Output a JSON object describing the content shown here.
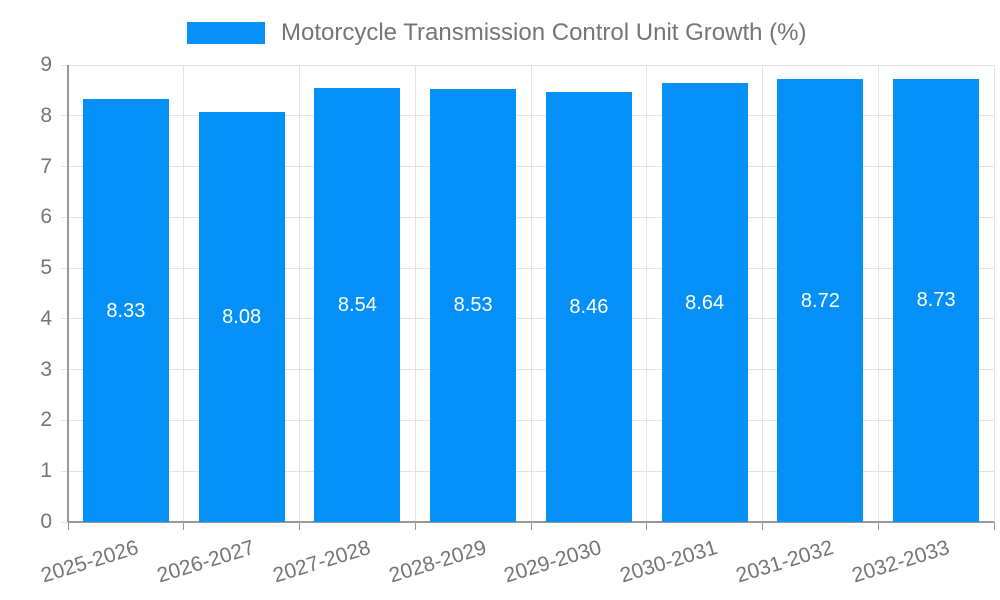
{
  "legend": {
    "series_label": "Motorcycle Transmission Control Unit Growth (%)"
  },
  "colors": {
    "bar": "#0590F8",
    "grid": "#E3E3E3",
    "axis": "#999999",
    "tick_label": "#757575",
    "legend_text": "#757575",
    "value_label": "#FFFFFF",
    "background": "#FFFFFF"
  },
  "chart_data": {
    "type": "bar",
    "title": "Motorcycle Transmission Control Unit Growth (%)",
    "series_name": "Motorcycle Transmission Control Unit Growth (%)",
    "categories": [
      "2025-2026",
      "2026-2027",
      "2027-2028",
      "2028-2029",
      "2029-2030",
      "2030-2031",
      "2031-2032",
      "2032-2033"
    ],
    "values": [
      8.33,
      8.08,
      8.54,
      8.53,
      8.46,
      8.64,
      8.72,
      8.73
    ],
    "value_labels": [
      "8.33",
      "8.08",
      "8.54",
      "8.53",
      "8.46",
      "8.64",
      "8.72",
      "8.73"
    ],
    "xlabel": "",
    "ylabel": "",
    "ylim": [
      0,
      9
    ],
    "yticks": [
      0,
      1,
      2,
      3,
      4,
      5,
      6,
      7,
      8,
      9
    ],
    "grid": true,
    "legend_position": "top-center",
    "value_labels_inside_bars": true,
    "x_label_rotation_deg": -17
  }
}
